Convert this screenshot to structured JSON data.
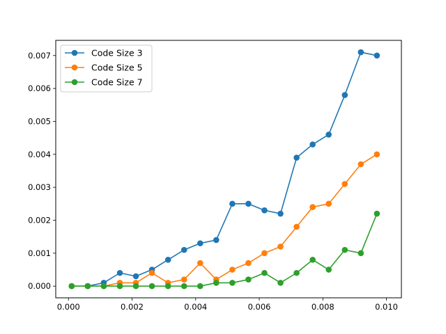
{
  "chart_data": {
    "type": "line",
    "title": "",
    "xlabel": "",
    "ylabel": "",
    "xlim": [
      -0.0004,
      0.01047
    ],
    "ylim": [
      -0.000355,
      0.00746
    ],
    "xticks": [
      0.0,
      0.002,
      0.004,
      0.006,
      0.008,
      0.01
    ],
    "xtick_labels": [
      "0.000",
      "0.002",
      "0.004",
      "0.006",
      "0.008",
      "0.010"
    ],
    "yticks": [
      0.0,
      0.001,
      0.002,
      0.003,
      0.004,
      0.005,
      0.006,
      0.007
    ],
    "ytick_labels": [
      "0.000",
      "0.001",
      "0.002",
      "0.003",
      "0.004",
      "0.005",
      "0.006",
      "0.007"
    ],
    "grid": false,
    "legend_position": "top-left",
    "x": [
      0.0001,
      0.000605,
      0.00111,
      0.001616,
      0.002121,
      0.002626,
      0.003132,
      0.003637,
      0.004142,
      0.004647,
      0.005153,
      0.005658,
      0.006163,
      0.006668,
      0.007174,
      0.007679,
      0.008184,
      0.00869,
      0.009195,
      0.0097
    ],
    "series": [
      {
        "name": "Code Size 3",
        "color": "#1f77b4",
        "values": [
          0.0,
          0.0,
          0.0001,
          0.0004,
          0.0003,
          0.0005,
          0.0008,
          0.0011,
          0.0013,
          0.0014,
          0.0025,
          0.0025,
          0.0023,
          0.0022,
          0.0039,
          0.0043,
          0.0046,
          0.0058,
          0.0071,
          0.007
        ]
      },
      {
        "name": "Code Size 5",
        "color": "#ff7f0e",
        "values": [
          0.0,
          0.0,
          0.0,
          0.0001,
          0.0001,
          0.0004,
          0.0001,
          0.0002,
          0.0007,
          0.0002,
          0.0005,
          0.0007,
          0.001,
          0.0012,
          0.0018,
          0.0024,
          0.0025,
          0.0031,
          0.0037,
          0.004
        ]
      },
      {
        "name": "Code Size 7",
        "color": "#2ca02c",
        "values": [
          0.0,
          0.0,
          0.0,
          0.0,
          0.0,
          0.0,
          0.0,
          0.0,
          0.0,
          0.0001,
          0.0001,
          0.0002,
          0.0004,
          0.0001,
          0.0004,
          0.0008,
          0.0005,
          0.0011,
          0.001,
          0.0022
        ]
      }
    ]
  }
}
